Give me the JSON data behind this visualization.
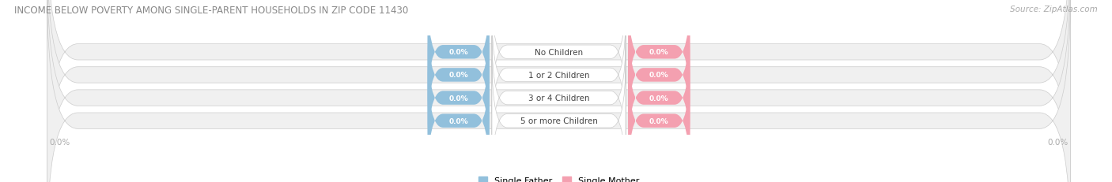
{
  "title": "INCOME BELOW POVERTY AMONG SINGLE-PARENT HOUSEHOLDS IN ZIP CODE 11430",
  "source": "Source: ZipAtlas.com",
  "categories": [
    "No Children",
    "1 or 2 Children",
    "3 or 4 Children",
    "5 or more Children"
  ],
  "single_father_values": [
    0.0,
    0.0,
    0.0,
    0.0
  ],
  "single_mother_values": [
    0.0,
    0.0,
    0.0,
    0.0
  ],
  "father_color": "#92C0DC",
  "mother_color": "#F4A0B0",
  "bar_bg_color": "#F0F0F0",
  "bar_border_color": "#CCCCCC",
  "title_color": "#888888",
  "label_color": "#444444",
  "axis_label_color": "#AAAAAA",
  "background_color": "#FFFFFF",
  "xlim_left": -100.0,
  "xlim_right": 100.0,
  "figsize": [
    14.06,
    2.32
  ],
  "dpi": 100
}
